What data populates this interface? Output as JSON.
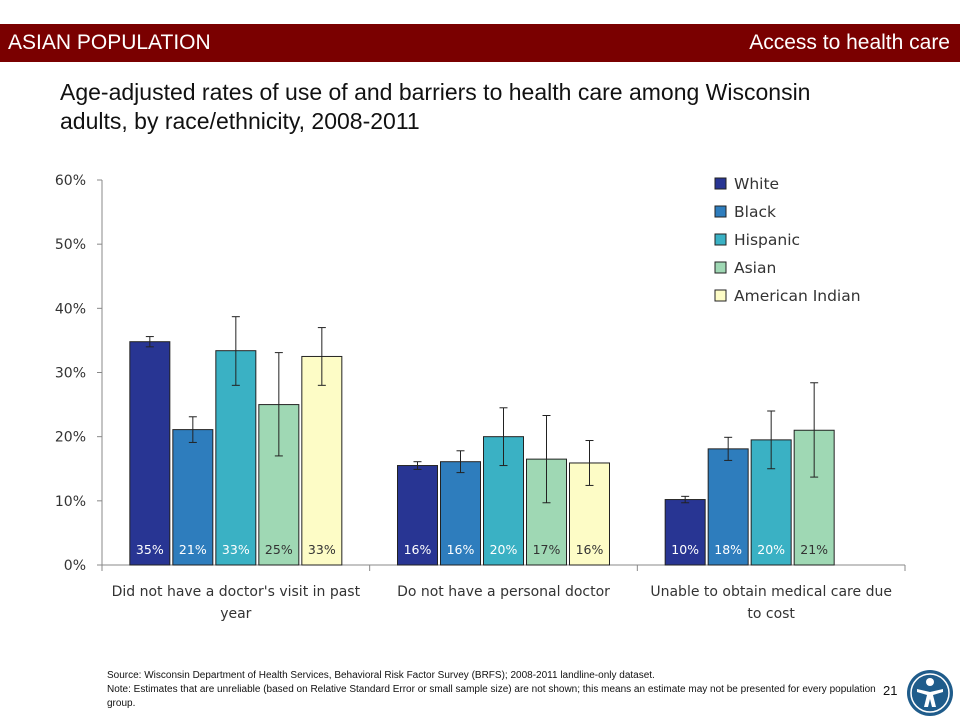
{
  "header": {
    "left_label": "ASIAN POPULATION",
    "right_label": "Access to health care",
    "bg_color": "#7a0000"
  },
  "title": "Age-adjusted rates of use of and barriers to health care among Wisconsin adults, by race/ethnicity, 2008-2011",
  "chart_data": {
    "type": "bar",
    "categories": [
      [
        "Did not have a doctor's visit in past",
        "year"
      ],
      [
        "Do not have a personal doctor"
      ],
      [
        "Unable to obtain medical care due",
        "to cost"
      ]
    ],
    "y_ticks": [
      "0%",
      "10%",
      "20%",
      "30%",
      "40%",
      "50%",
      "60%"
    ],
    "ylim": [
      0,
      60
    ],
    "grid": false,
    "legend_position": "top-right",
    "series": [
      {
        "name": "White",
        "color": "#283593",
        "values": [
          34.8,
          15.5,
          10.2
        ],
        "labels": [
          "35%",
          "16%",
          "10%"
        ],
        "error_low": [
          34.0,
          14.9,
          9.7
        ],
        "error_high": [
          35.6,
          16.1,
          10.7
        ]
      },
      {
        "name": "Black",
        "color": "#2e7dbd",
        "values": [
          21.1,
          16.1,
          18.1
        ],
        "labels": [
          "21%",
          "16%",
          "18%"
        ],
        "error_low": [
          19.1,
          14.4,
          16.3
        ],
        "error_high": [
          23.1,
          17.8,
          19.9
        ]
      },
      {
        "name": "Hispanic",
        "color": "#3ab1c4",
        "values": [
          33.4,
          20.0,
          19.5
        ],
        "labels": [
          "33%",
          "20%",
          "20%"
        ],
        "error_low": [
          28.0,
          15.5,
          15.0
        ],
        "error_high": [
          38.7,
          24.5,
          24.0
        ]
      },
      {
        "name": "Asian",
        "color": "#9fd8b4",
        "values": [
          25.0,
          16.5,
          21.0
        ],
        "labels": [
          "25%",
          "17%",
          "21%"
        ],
        "error_low": [
          17.0,
          9.7,
          13.7
        ],
        "error_high": [
          33.1,
          23.3,
          28.4
        ]
      },
      {
        "name": "American Indian",
        "color": "#fdfcc6",
        "values": [
          32.5,
          15.9,
          null
        ],
        "labels": [
          "33%",
          "16%",
          null
        ],
        "error_low": [
          28.0,
          12.4,
          null
        ],
        "error_high": [
          37.0,
          19.4,
          null
        ]
      }
    ]
  },
  "footnote": {
    "source": "Source: Wisconsin Department of Health Services, Behavioral Risk Factor Survey (BRFS); 2008-2011 landline-only dataset.",
    "note": "Note: Estimates that are unreliable (based on Relative Standard Error or small sample size) are not shown; this means an estimate may not be presented for every population group."
  },
  "page_number": "21",
  "logo": {
    "icon": "person-figure-logo-icon",
    "color": "#1f5c8b"
  }
}
